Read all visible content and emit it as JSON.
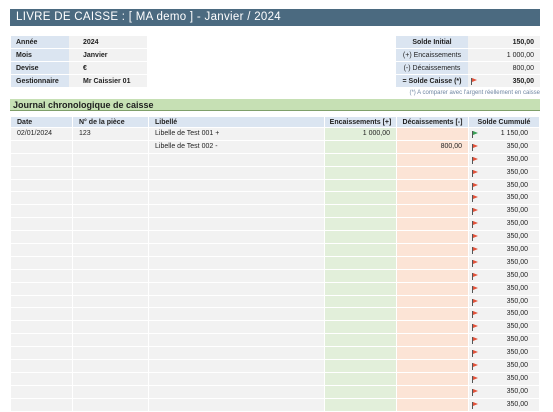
{
  "title": "LIVRE DE CAISSE : [ MA demo ] - Janvier / 2024",
  "info": [
    {
      "label": "Année",
      "value": "2024"
    },
    {
      "label": "Mois",
      "value": "Janvier"
    },
    {
      "label": "Devise",
      "value": "€"
    },
    {
      "label": "Gestionnaire",
      "value": "Mr Caissier 01"
    }
  ],
  "solde": {
    "initial_label": "Solde Initial",
    "initial_value": "150,00",
    "enc_label": "(+) Encaissements",
    "enc_value": "1 000,00",
    "dec_label": "(-) Décaissements",
    "dec_value": "800,00",
    "caisse_label": "= Solde Caisse (*)",
    "caisse_value": "350,00"
  },
  "note": "(*) A comparer avec l'argent réellement en caisse",
  "section_title": "Journal chronologique de caisse",
  "columns": {
    "date": "Date",
    "piece": "N° de la pièce",
    "libelle": "Libellé",
    "enc": "Encaissements [+]",
    "dec": "Décaissements [-]",
    "solde": "Solde Cummulé"
  },
  "colors": {
    "flag_up": "#3aa056",
    "flag_down": "#e2533b"
  },
  "rows": [
    {
      "date": "02/01/2024",
      "piece": "123",
      "libelle": "Libelle de Test 001 +",
      "enc": "1 000,00",
      "dec": "",
      "solde": "1 150,00",
      "flag": "green"
    },
    {
      "date": "",
      "piece": "",
      "libelle": "Libelle de Test 002 -",
      "enc": "",
      "dec": "800,00",
      "solde": "350,00",
      "flag": "red"
    },
    {
      "date": "",
      "piece": "",
      "libelle": "",
      "enc": "",
      "dec": "",
      "solde": "350,00",
      "flag": "red"
    },
    {
      "date": "",
      "piece": "",
      "libelle": "",
      "enc": "",
      "dec": "",
      "solde": "350,00",
      "flag": "red"
    },
    {
      "date": "",
      "piece": "",
      "libelle": "",
      "enc": "",
      "dec": "",
      "solde": "350,00",
      "flag": "red"
    },
    {
      "date": "",
      "piece": "",
      "libelle": "",
      "enc": "",
      "dec": "",
      "solde": "350,00",
      "flag": "red"
    },
    {
      "date": "",
      "piece": "",
      "libelle": "",
      "enc": "",
      "dec": "",
      "solde": "350,00",
      "flag": "red"
    },
    {
      "date": "",
      "piece": "",
      "libelle": "",
      "enc": "",
      "dec": "",
      "solde": "350,00",
      "flag": "red"
    },
    {
      "date": "",
      "piece": "",
      "libelle": "",
      "enc": "",
      "dec": "",
      "solde": "350,00",
      "flag": "red"
    },
    {
      "date": "",
      "piece": "",
      "libelle": "",
      "enc": "",
      "dec": "",
      "solde": "350,00",
      "flag": "red"
    },
    {
      "date": "",
      "piece": "",
      "libelle": "",
      "enc": "",
      "dec": "",
      "solde": "350,00",
      "flag": "red"
    },
    {
      "date": "",
      "piece": "",
      "libelle": "",
      "enc": "",
      "dec": "",
      "solde": "350,00",
      "flag": "red"
    },
    {
      "date": "",
      "piece": "",
      "libelle": "",
      "enc": "",
      "dec": "",
      "solde": "350,00",
      "flag": "red"
    },
    {
      "date": "",
      "piece": "",
      "libelle": "",
      "enc": "",
      "dec": "",
      "solde": "350,00",
      "flag": "red"
    },
    {
      "date": "",
      "piece": "",
      "libelle": "",
      "enc": "",
      "dec": "",
      "solde": "350,00",
      "flag": "red"
    },
    {
      "date": "",
      "piece": "",
      "libelle": "",
      "enc": "",
      "dec": "",
      "solde": "350,00",
      "flag": "red"
    },
    {
      "date": "",
      "piece": "",
      "libelle": "",
      "enc": "",
      "dec": "",
      "solde": "350,00",
      "flag": "red"
    },
    {
      "date": "",
      "piece": "",
      "libelle": "",
      "enc": "",
      "dec": "",
      "solde": "350,00",
      "flag": "red"
    },
    {
      "date": "",
      "piece": "",
      "libelle": "",
      "enc": "",
      "dec": "",
      "solde": "350,00",
      "flag": "red"
    },
    {
      "date": "",
      "piece": "",
      "libelle": "",
      "enc": "",
      "dec": "",
      "solde": "350,00",
      "flag": "red"
    },
    {
      "date": "",
      "piece": "",
      "libelle": "",
      "enc": "",
      "dec": "",
      "solde": "350,00",
      "flag": "red"
    },
    {
      "date": "",
      "piece": "",
      "libelle": "",
      "enc": "",
      "dec": "",
      "solde": "350,00",
      "flag": "red"
    }
  ]
}
